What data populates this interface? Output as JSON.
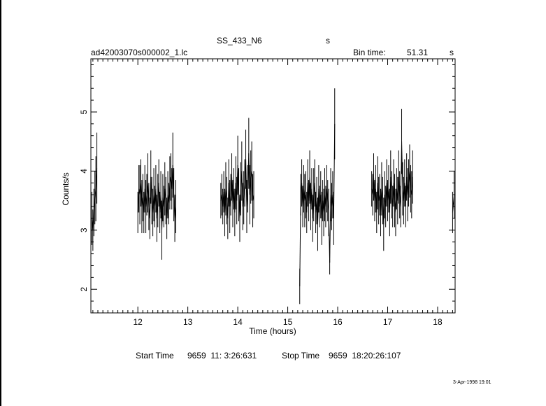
{
  "header": {
    "object": "SS_433_N6",
    "object_suffix": "s",
    "filename": "ad42003070s000002_1.lc",
    "bin_label": "Bin time:",
    "bin_value": "51.31",
    "bin_unit": "s"
  },
  "footer": {
    "start_label": "Start Time",
    "start_value": "9659  11: 3:26:631",
    "stop_label": "Stop Time",
    "stop_value": "9659  18:20:26:107",
    "date": "3-Apr-1998 19:01"
  },
  "colors": {
    "foreground": "#000000",
    "background": "#ffffff"
  },
  "chart_data": {
    "type": "scatter",
    "xlabel": "Time (hours)",
    "ylabel": "Counts/s",
    "xlim": [
      11.06,
      18.35
    ],
    "ylim": [
      1.6,
      5.9
    ],
    "x_ticks": [
      12,
      13,
      14,
      15,
      16,
      17,
      18
    ],
    "y_ticks": [
      2,
      3,
      4,
      5
    ],
    "x_minor_step": 0.1,
    "y_minor_step": 0.2,
    "grid": false,
    "error_bars": true,
    "points": [
      [
        11.08,
        3.2,
        0.45
      ],
      [
        11.1,
        3.0,
        0.35
      ],
      [
        11.12,
        3.3,
        0.4
      ],
      [
        11.14,
        3.55,
        0.45
      ],
      [
        11.16,
        3.7,
        0.55
      ],
      [
        11.18,
        4.05,
        0.6
      ],
      [
        12.0,
        3.3,
        0.35
      ],
      [
        12.02,
        3.7,
        0.4
      ],
      [
        12.04,
        3.6,
        0.5
      ],
      [
        12.06,
        3.8,
        0.4
      ],
      [
        12.08,
        3.4,
        0.45
      ],
      [
        12.1,
        3.55,
        0.4
      ],
      [
        12.12,
        3.3,
        0.35
      ],
      [
        12.14,
        3.7,
        0.4
      ],
      [
        12.16,
        3.4,
        0.45
      ],
      [
        12.18,
        3.6,
        0.35
      ],
      [
        12.2,
        3.8,
        0.5
      ],
      [
        12.22,
        3.4,
        0.4
      ],
      [
        12.24,
        3.2,
        0.35
      ],
      [
        12.26,
        3.9,
        0.45
      ],
      [
        12.28,
        3.5,
        0.4
      ],
      [
        12.3,
        3.3,
        0.4
      ],
      [
        12.32,
        3.6,
        0.45
      ],
      [
        12.34,
        3.4,
        0.35
      ],
      [
        12.36,
        3.7,
        0.4
      ],
      [
        12.38,
        3.2,
        0.4
      ],
      [
        12.4,
        3.5,
        0.45
      ],
      [
        12.42,
        3.8,
        0.4
      ],
      [
        12.44,
        3.3,
        0.35
      ],
      [
        12.46,
        3.6,
        0.4
      ],
      [
        12.48,
        3.0,
        0.5
      ],
      [
        12.5,
        3.55,
        0.4
      ],
      [
        12.52,
        3.4,
        0.35
      ],
      [
        12.54,
        3.7,
        0.45
      ],
      [
        12.56,
        3.5,
        0.4
      ],
      [
        12.58,
        3.2,
        0.35
      ],
      [
        12.6,
        3.6,
        0.4
      ],
      [
        12.62,
        3.45,
        0.35
      ],
      [
        12.64,
        3.8,
        0.45
      ],
      [
        12.66,
        3.9,
        0.4
      ],
      [
        12.68,
        3.7,
        0.35
      ],
      [
        12.7,
        4.1,
        0.55
      ],
      [
        12.72,
        3.6,
        0.45
      ],
      [
        12.74,
        3.2,
        0.4
      ],
      [
        12.76,
        3.4,
        0.45
      ],
      [
        13.66,
        3.5,
        0.3
      ],
      [
        13.68,
        3.6,
        0.35
      ],
      [
        13.7,
        3.4,
        0.3
      ],
      [
        13.72,
        3.65,
        0.35
      ],
      [
        13.74,
        3.3,
        0.4
      ],
      [
        13.76,
        3.7,
        0.45
      ],
      [
        13.78,
        3.5,
        0.4
      ],
      [
        13.8,
        3.2,
        0.35
      ],
      [
        13.82,
        3.8,
        0.4
      ],
      [
        13.84,
        3.4,
        0.45
      ],
      [
        13.86,
        3.6,
        0.35
      ],
      [
        13.88,
        3.9,
        0.4
      ],
      [
        13.9,
        3.45,
        0.4
      ],
      [
        13.92,
        3.7,
        0.35
      ],
      [
        13.94,
        3.3,
        0.4
      ],
      [
        13.96,
        3.8,
        0.45
      ],
      [
        13.98,
        3.5,
        0.4
      ],
      [
        14.0,
        4.1,
        0.5
      ],
      [
        14.02,
        3.6,
        0.45
      ],
      [
        14.04,
        3.2,
        0.4
      ],
      [
        14.06,
        3.7,
        0.45
      ],
      [
        14.08,
        4.0,
        0.5
      ],
      [
        14.1,
        3.4,
        0.4
      ],
      [
        14.12,
        3.55,
        0.45
      ],
      [
        14.14,
        3.8,
        0.4
      ],
      [
        14.16,
        4.2,
        0.5
      ],
      [
        14.18,
        3.4,
        0.45
      ],
      [
        14.2,
        3.7,
        0.4
      ],
      [
        14.22,
        4.3,
        0.6
      ],
      [
        14.24,
        3.6,
        0.5
      ],
      [
        14.26,
        3.9,
        0.45
      ],
      [
        14.28,
        4.0,
        0.5
      ],
      [
        14.3,
        3.5,
        0.45
      ],
      [
        14.32,
        3.6,
        0.4
      ],
      [
        15.24,
        2.05,
        0.3
      ],
      [
        15.26,
        3.6,
        0.35
      ],
      [
        15.28,
        3.8,
        0.4
      ],
      [
        15.3,
        3.4,
        0.35
      ],
      [
        15.32,
        3.7,
        0.4
      ],
      [
        15.34,
        3.5,
        0.45
      ],
      [
        15.36,
        3.6,
        0.4
      ],
      [
        15.38,
        3.3,
        0.35
      ],
      [
        15.4,
        3.8,
        0.4
      ],
      [
        15.42,
        3.5,
        0.35
      ],
      [
        15.44,
        3.9,
        0.45
      ],
      [
        15.46,
        3.4,
        0.4
      ],
      [
        15.48,
        3.7,
        0.35
      ],
      [
        15.5,
        3.2,
        0.4
      ],
      [
        15.52,
        3.6,
        0.45
      ],
      [
        15.54,
        3.8,
        0.4
      ],
      [
        15.56,
        3.3,
        0.35
      ],
      [
        15.58,
        3.5,
        0.4
      ],
      [
        15.6,
        3.1,
        0.45
      ],
      [
        15.62,
        3.7,
        0.4
      ],
      [
        15.64,
        3.4,
        0.35
      ],
      [
        15.66,
        3.6,
        0.4
      ],
      [
        15.68,
        3.2,
        0.45
      ],
      [
        15.7,
        3.5,
        0.35
      ],
      [
        15.72,
        3.3,
        0.4
      ],
      [
        15.74,
        3.6,
        0.45
      ],
      [
        15.76,
        3.4,
        0.35
      ],
      [
        15.78,
        3.7,
        0.4
      ],
      [
        15.8,
        3.5,
        0.35
      ],
      [
        15.82,
        3.3,
        0.4
      ],
      [
        15.84,
        2.45,
        0.2
      ],
      [
        15.86,
        3.6,
        0.45
      ],
      [
        15.88,
        3.4,
        0.4
      ],
      [
        15.9,
        3.6,
        0.4
      ],
      [
        15.92,
        3.2,
        0.45
      ],
      [
        15.94,
        4.8,
        0.6
      ],
      [
        16.68,
        3.7,
        0.3
      ],
      [
        16.7,
        3.6,
        0.35
      ],
      [
        16.72,
        3.9,
        0.4
      ],
      [
        16.74,
        3.5,
        0.35
      ],
      [
        16.76,
        3.7,
        0.4
      ],
      [
        16.78,
        3.3,
        0.35
      ],
      [
        16.8,
        3.8,
        0.45
      ],
      [
        16.82,
        3.5,
        0.4
      ],
      [
        16.84,
        3.6,
        0.35
      ],
      [
        16.86,
        3.3,
        0.4
      ],
      [
        16.88,
        3.7,
        0.45
      ],
      [
        16.9,
        3.5,
        0.4
      ],
      [
        16.92,
        3.1,
        0.45
      ],
      [
        16.94,
        3.6,
        0.4
      ],
      [
        16.96,
        3.4,
        0.35
      ],
      [
        16.98,
        3.8,
        0.4
      ],
      [
        17.0,
        3.5,
        0.35
      ],
      [
        17.02,
        3.7,
        0.4
      ],
      [
        17.04,
        3.3,
        0.4
      ],
      [
        17.06,
        3.9,
        0.45
      ],
      [
        17.08,
        3.6,
        0.4
      ],
      [
        17.1,
        3.4,
        0.35
      ],
      [
        17.12,
        3.8,
        0.4
      ],
      [
        17.14,
        3.5,
        0.45
      ],
      [
        17.16,
        3.3,
        0.4
      ],
      [
        17.18,
        3.7,
        0.35
      ],
      [
        17.2,
        3.5,
        0.4
      ],
      [
        17.22,
        3.9,
        0.45
      ],
      [
        17.24,
        3.6,
        0.4
      ],
      [
        17.26,
        3.4,
        0.35
      ],
      [
        17.28,
        4.5,
        0.55
      ],
      [
        17.3,
        3.7,
        0.45
      ],
      [
        17.32,
        3.5,
        0.4
      ],
      [
        17.34,
        3.8,
        0.4
      ],
      [
        17.36,
        3.4,
        0.35
      ],
      [
        17.38,
        3.9,
        0.4
      ],
      [
        17.4,
        3.6,
        0.45
      ],
      [
        17.42,
        3.8,
        0.4
      ],
      [
        17.44,
        4.0,
        0.45
      ],
      [
        17.46,
        3.7,
        0.4
      ],
      [
        17.48,
        3.6,
        0.4
      ],
      [
        17.5,
        3.9,
        0.45
      ],
      [
        18.3,
        3.3,
        0.35
      ],
      [
        18.33,
        3.6,
        0.4
      ]
    ]
  }
}
